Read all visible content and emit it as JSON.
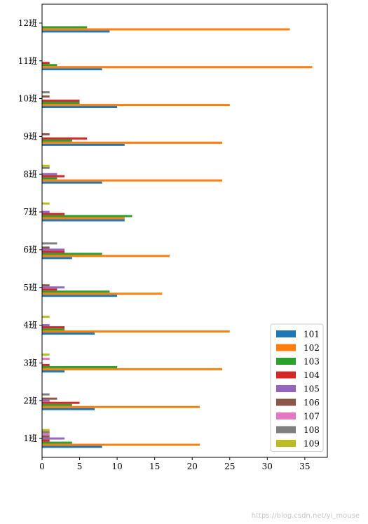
{
  "chart_data": {
    "type": "bar",
    "orientation": "horizontal",
    "categories": [
      "1班",
      "2班",
      "3班",
      "4班",
      "5班",
      "6班",
      "7班",
      "8班",
      "9班",
      "10班",
      "11班",
      "12班"
    ],
    "series": [
      {
        "name": "101",
        "color": "#1f77b4",
        "values": [
          8,
          7,
          3,
          7,
          10,
          4,
          11,
          8,
          11,
          10,
          8,
          9
        ]
      },
      {
        "name": "102",
        "color": "#ff7f0e",
        "values": [
          21,
          21,
          24,
          25,
          16,
          17,
          11,
          24,
          24,
          25,
          36,
          33
        ]
      },
      {
        "name": "103",
        "color": "#2ca02c",
        "values": [
          4,
          4,
          10,
          3,
          9,
          8,
          12,
          2,
          4,
          5,
          2,
          6
        ]
      },
      {
        "name": "104",
        "color": "#d62728",
        "values": [
          1,
          5,
          1,
          3,
          2,
          3,
          3,
          3,
          6,
          5,
          1,
          0
        ]
      },
      {
        "name": "105",
        "color": "#9467bd",
        "values": [
          3,
          1,
          0,
          1,
          3,
          3,
          1,
          2,
          0,
          0,
          0,
          0
        ]
      },
      {
        "name": "106",
        "color": "#8c564b",
        "values": [
          1,
          2,
          0,
          0,
          1,
          1,
          0,
          0,
          1,
          1,
          0,
          0
        ]
      },
      {
        "name": "107",
        "color": "#e377c2",
        "values": [
          1,
          0,
          1,
          0,
          0,
          0,
          0,
          0,
          0,
          0,
          0,
          0
        ]
      },
      {
        "name": "108",
        "color": "#7f7f7f",
        "values": [
          1,
          1,
          0,
          0,
          0,
          2,
          0,
          1,
          0,
          1,
          0,
          0
        ]
      },
      {
        "name": "109",
        "color": "#bcbd22",
        "values": [
          1,
          0,
          1,
          1,
          0,
          0,
          1,
          1,
          0,
          0,
          0,
          0
        ]
      }
    ],
    "xticks": [
      "0",
      "5",
      "10",
      "15",
      "20",
      "25",
      "30",
      "35"
    ],
    "xlim": [
      0,
      38
    ],
    "legend_position": "lower-right",
    "grid": false
  },
  "watermark": "https://blog.csdn.net/yi_mouse"
}
